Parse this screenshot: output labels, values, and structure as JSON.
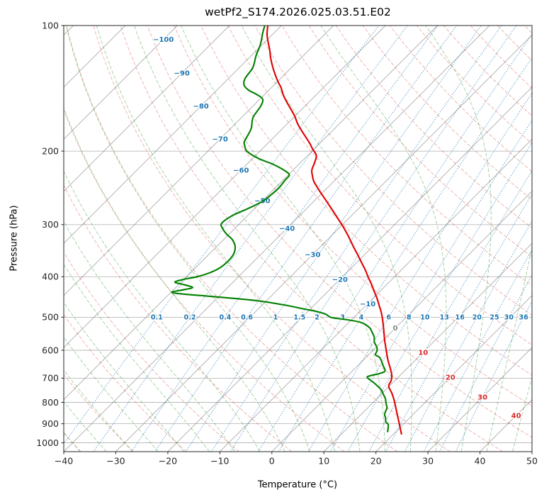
{
  "title": "wetPf2_S174.2026.025.03.51.E02",
  "axes": {
    "xlabel": "Temperature (°C)",
    "ylabel": "Pressure (hPa)",
    "x_ticks": [
      -40,
      -30,
      -20,
      -10,
      0,
      10,
      20,
      30,
      40,
      50
    ],
    "y_ticks": [
      100,
      200,
      300,
      400,
      500,
      600,
      700,
      800,
      900,
      1000
    ],
    "x_min": -40,
    "x_max": 50,
    "p_top": 100,
    "p_bottom": 1050,
    "skew_deg": 45
  },
  "chart_data": {
    "type": "skewT-logP",
    "title": "wetPf2_S174.2026.025.03.51.E02",
    "xlabel": "Temperature (°C)",
    "ylabel": "Pressure (hPa)",
    "x_range": [
      -40,
      50
    ],
    "p_range": [
      100,
      1050
    ],
    "grid": true,
    "series": [
      {
        "name": "temperature",
        "color": "#e00000",
        "points": [
          [
            952,
            21.5
          ],
          [
            891,
            18.7
          ],
          [
            840,
            16.2
          ],
          [
            792,
            13.7
          ],
          [
            760,
            11.8
          ],
          [
            732,
            9.9
          ],
          [
            710,
            9.3
          ],
          [
            691,
            8.5
          ],
          [
            665,
            6.9
          ],
          [
            639,
            5.1
          ],
          [
            615,
            3.5
          ],
          [
            591,
            1.9
          ],
          [
            568,
            0.3
          ],
          [
            546,
            -1.2
          ],
          [
            525,
            -2.7
          ],
          [
            505,
            -4.2
          ],
          [
            486,
            -5.8
          ],
          [
            467,
            -7.6
          ],
          [
            449,
            -9.4
          ],
          [
            432,
            -11.3
          ],
          [
            416,
            -13.1
          ],
          [
            400,
            -15.1
          ],
          [
            384,
            -17.1
          ],
          [
            369,
            -19.2
          ],
          [
            355,
            -21.2
          ],
          [
            342,
            -23.2
          ],
          [
            329,
            -25.2
          ],
          [
            316,
            -27.3
          ],
          [
            304,
            -29.4
          ],
          [
            292,
            -31.7
          ],
          [
            281,
            -33.9
          ],
          [
            270,
            -36.2
          ],
          [
            260,
            -38.4
          ],
          [
            250,
            -40.7
          ],
          [
            243,
            -42.3
          ],
          [
            236,
            -43.9
          ],
          [
            229,
            -45.2
          ],
          [
            222,
            -46.4
          ],
          [
            214,
            -47.2
          ],
          [
            205,
            -48.3
          ],
          [
            198,
            -50.2
          ],
          [
            192,
            -51.8
          ],
          [
            186,
            -53.6
          ],
          [
            179,
            -55.8
          ],
          [
            172,
            -58.0
          ],
          [
            165,
            -60.0
          ],
          [
            159,
            -62.0
          ],
          [
            153,
            -64.1
          ],
          [
            147,
            -66.2
          ],
          [
            141,
            -68.1
          ],
          [
            136,
            -70.0
          ],
          [
            131,
            -71.8
          ],
          [
            126,
            -73.6
          ],
          [
            120,
            -75.7
          ],
          [
            114,
            -77.7
          ],
          [
            110,
            -79.2
          ],
          [
            106,
            -80.7
          ],
          [
            103,
            -81.7
          ],
          [
            100,
            -82.6
          ]
        ]
      },
      {
        "name": "dewpoint",
        "color": "#008000",
        "points": [
          [
            940,
            18.4
          ],
          [
            905,
            17.2
          ],
          [
            891,
            16.2
          ],
          [
            870,
            15.3
          ],
          [
            857,
            14.6
          ],
          [
            840,
            14.1
          ],
          [
            824,
            13.7
          ],
          [
            803,
            12.6
          ],
          [
            783,
            11.6
          ],
          [
            765,
            10.4
          ],
          [
            747,
            9.2
          ],
          [
            732,
            7.8
          ],
          [
            718,
            6.4
          ],
          [
            706,
            5.0
          ],
          [
            696,
            4.0
          ],
          [
            690,
            4.4
          ],
          [
            683,
            5.6
          ],
          [
            676,
            6.3
          ],
          [
            668,
            6.0
          ],
          [
            655,
            5.0
          ],
          [
            640,
            3.9
          ],
          [
            625,
            2.7
          ],
          [
            615,
            1.3
          ],
          [
            603,
            0.9
          ],
          [
            591,
            0.2
          ],
          [
            574,
            -1.3
          ],
          [
            557,
            -2.4
          ],
          [
            543,
            -3.7
          ],
          [
            530,
            -5.0
          ],
          [
            515,
            -7.6
          ],
          [
            507,
            -10.9
          ],
          [
            501,
            -14.3
          ],
          [
            492,
            -16.0
          ],
          [
            485,
            -18.1
          ],
          [
            478,
            -21.1
          ],
          [
            467,
            -26.0
          ],
          [
            456,
            -32.2
          ],
          [
            446,
            -41.2
          ],
          [
            439,
            -48.3
          ],
          [
            435,
            -49.8
          ],
          [
            429,
            -47.8
          ],
          [
            424,
            -46.8
          ],
          [
            417,
            -49.3
          ],
          [
            412,
            -51.2
          ],
          [
            406,
            -50.1
          ],
          [
            400,
            -48.0
          ],
          [
            392,
            -46.4
          ],
          [
            381,
            -45.3
          ],
          [
            367,
            -45.0
          ],
          [
            353,
            -45.3
          ],
          [
            339,
            -46.4
          ],
          [
            326,
            -48.3
          ],
          [
            316,
            -50.5
          ],
          [
            306,
            -52.4
          ],
          [
            298,
            -53.5
          ],
          [
            286,
            -53.0
          ],
          [
            276,
            -51.5
          ],
          [
            265,
            -50.0
          ],
          [
            255,
            -49.5
          ],
          [
            245,
            -49.3
          ],
          [
            235,
            -49.6
          ],
          [
            228,
            -49.8
          ],
          [
            222,
            -51.8
          ],
          [
            215,
            -55.0
          ],
          [
            208,
            -59.0
          ],
          [
            200,
            -62.5
          ],
          [
            193,
            -64.2
          ],
          [
            190,
            -64.8
          ],
          [
            183,
            -65.4
          ],
          [
            176,
            -66.1
          ],
          [
            166,
            -67.8
          ],
          [
            156,
            -68.5
          ],
          [
            150,
            -69.5
          ],
          [
            146,
            -71.7
          ],
          [
            143,
            -73.8
          ],
          [
            139,
            -75.7
          ],
          [
            134,
            -76.8
          ],
          [
            127,
            -77.3
          ],
          [
            123,
            -78.0
          ],
          [
            118,
            -79.1
          ],
          [
            111,
            -80.4
          ],
          [
            104,
            -82.2
          ],
          [
            100,
            -83.2
          ]
        ]
      }
    ],
    "background": {
      "pressure_gridlines": {
        "color": "rgba(90,90,90,0.42)"
      },
      "isotherms": {
        "min": -140,
        "max": 50,
        "step": 10,
        "color": "rgba(90,90,90,0.5)"
      },
      "dry_adiabats": {
        "theta_min": -40,
        "theta_max": 200,
        "step": 10,
        "color": "rgba(213,57,46,0.38)"
      },
      "moist_adiabats": {
        "t_start_min": -40,
        "t_start_max": 45,
        "step": 5,
        "color": "rgba(44,150,44,0.42)"
      },
      "mixing_ratio_lines": {
        "values": [
          0.1,
          0.2,
          0.4,
          0.6,
          1,
          1.5,
          2,
          3,
          4,
          6,
          8,
          10,
          13,
          16,
          20,
          25,
          30,
          36
        ],
        "color": "rgba(31,119,180,0.8)",
        "label_color": "#1f77b4",
        "label_pressure": 500
      },
      "isotherm_labels": {
        "cold_color": "#1f77b4",
        "zero_color": "#888888",
        "warm_color": "#d62728",
        "items": [
          {
            "t": -100,
            "p": 108
          },
          {
            "t": -90,
            "p": 130
          },
          {
            "t": -80,
            "p": 156
          },
          {
            "t": -70,
            "p": 187
          },
          {
            "t": -60,
            "p": 222
          },
          {
            "t": -50,
            "p": 263
          },
          {
            "t": -40,
            "p": 306
          },
          {
            "t": -30,
            "p": 354
          },
          {
            "t": -20,
            "p": 406
          },
          {
            "t": -10,
            "p": 464
          },
          {
            "t": 0,
            "p": 531
          },
          {
            "t": 10,
            "p": 607
          },
          {
            "t": 20,
            "p": 696
          },
          {
            "t": 30,
            "p": 777
          },
          {
            "t": 40,
            "p": 860
          }
        ]
      }
    }
  }
}
